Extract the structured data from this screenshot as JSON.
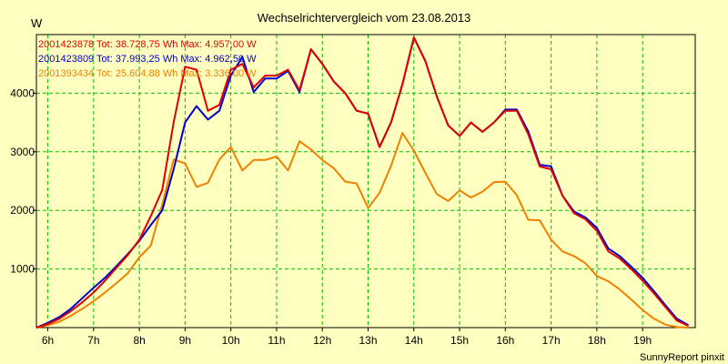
{
  "chart_data": {
    "type": "line",
    "title": "Wechselrichtervergleich vom 23.08.2013",
    "ylabel": "W",
    "xlabel": "",
    "ylim": [
      0,
      5000
    ],
    "xlim": [
      5.75,
      20.15
    ],
    "yticks": [
      1000,
      2000,
      3000,
      4000
    ],
    "ytick_labels": [
      "1000",
      "2000",
      "3000",
      "4000"
    ],
    "xticks": [
      6,
      7,
      8,
      9,
      10,
      11,
      12,
      13,
      14,
      15,
      16,
      17,
      18,
      19
    ],
    "xtick_labels": [
      "6h",
      "7h",
      "8h",
      "9h",
      "10h",
      "11h",
      "12h",
      "13h",
      "14h",
      "15h",
      "16h",
      "17h",
      "18h",
      "19h"
    ],
    "grid": true,
    "legend_position": "top-left",
    "series": [
      {
        "name": "2001423878",
        "label": "2001423878 Tot: 38.728,75 Wh Max: 4.957,00 W",
        "color": "#e00000",
        "x": [
          5.75,
          6.0,
          6.25,
          6.5,
          6.75,
          7.0,
          7.25,
          7.5,
          7.75,
          8.0,
          8.25,
          8.5,
          8.75,
          9.0,
          9.25,
          9.5,
          9.75,
          10.0,
          10.25,
          10.5,
          10.75,
          11.0,
          11.25,
          11.5,
          11.75,
          12.0,
          12.25,
          12.5,
          12.75,
          13.0,
          13.25,
          13.5,
          13.75,
          14.0,
          14.25,
          14.5,
          14.75,
          15.0,
          15.25,
          15.5,
          15.75,
          16.0,
          16.25,
          16.5,
          16.75,
          17.0,
          17.25,
          17.5,
          17.75,
          18.0,
          18.25,
          18.5,
          18.75,
          19.0,
          19.25,
          19.5,
          19.75,
          20.0
        ],
        "values": [
          0,
          60,
          150,
          280,
          430,
          600,
          800,
          1020,
          1240,
          1500,
          1900,
          2350,
          3500,
          4450,
          4400,
          3700,
          3800,
          4400,
          4500,
          4100,
          4300,
          4300,
          4400,
          4050,
          4750,
          4500,
          4200,
          4000,
          3700,
          3650,
          3080,
          3500,
          4150,
          4950,
          4550,
          3950,
          3450,
          3270,
          3500,
          3340,
          3500,
          3700,
          3700,
          3300,
          2750,
          2700,
          2250,
          1950,
          1850,
          1650,
          1300,
          1180,
          1000,
          800,
          580,
          350,
          120,
          30
        ]
      },
      {
        "name": "2001423809",
        "label": "2001423809 Tot: 37.993,25 Wh Max: 4.962,50 W",
        "color": "#0000d0",
        "x": [
          5.75,
          6.0,
          6.25,
          6.5,
          6.75,
          7.0,
          7.25,
          7.5,
          7.75,
          8.0,
          8.25,
          8.5,
          8.75,
          9.0,
          9.25,
          9.5,
          9.75,
          10.0,
          10.25,
          10.5,
          10.75,
          11.0,
          11.25,
          11.5,
          11.75,
          12.0,
          12.25,
          12.5,
          12.75,
          13.0,
          13.25,
          13.5,
          13.75,
          14.0,
          14.25,
          14.5,
          14.75,
          15.0,
          15.25,
          15.5,
          15.75,
          16.0,
          16.25,
          16.5,
          16.75,
          17.0,
          17.25,
          17.5,
          17.75,
          18.0,
          18.25,
          18.5,
          18.75,
          19.0,
          19.25,
          19.5,
          19.75,
          20.0
        ],
        "values": [
          0,
          80,
          180,
          320,
          500,
          680,
          850,
          1050,
          1260,
          1480,
          1750,
          2000,
          2700,
          3500,
          3780,
          3550,
          3700,
          4300,
          4620,
          4020,
          4250,
          4250,
          4380,
          4020,
          4750,
          4500,
          4200,
          4000,
          3700,
          3650,
          3080,
          3500,
          4150,
          4950,
          4550,
          3950,
          3450,
          3270,
          3500,
          3340,
          3500,
          3720,
          3720,
          3350,
          2780,
          2750,
          2250,
          1980,
          1880,
          1700,
          1350,
          1220,
          1040,
          850,
          620,
          380,
          150,
          40
        ]
      },
      {
        "name": "2001393434",
        "label": "2001393434 Tot: 25.604,88 Wh Max: 3.336,00 W",
        "color": "#f08000",
        "x": [
          5.75,
          6.0,
          6.25,
          6.5,
          6.75,
          7.0,
          7.25,
          7.5,
          7.75,
          8.0,
          8.25,
          8.5,
          8.75,
          9.0,
          9.25,
          9.5,
          9.75,
          10.0,
          10.25,
          10.5,
          10.75,
          11.0,
          11.25,
          11.5,
          11.75,
          12.0,
          12.25,
          12.5,
          12.75,
          13.0,
          13.25,
          13.5,
          13.75,
          14.0,
          14.25,
          14.5,
          14.75,
          15.0,
          15.25,
          15.5,
          15.75,
          16.0,
          16.25,
          16.5,
          16.75,
          17.0,
          17.25,
          17.5,
          17.75,
          18.0,
          18.25,
          18.5,
          18.75,
          19.0,
          19.25,
          19.5,
          19.75,
          20.0
        ],
        "values": [
          0,
          40,
          100,
          200,
          320,
          450,
          600,
          760,
          930,
          1200,
          1400,
          2100,
          2870,
          2800,
          2400,
          2470,
          2870,
          3080,
          2680,
          2860,
          2860,
          2920,
          2680,
          3180,
          3040,
          2860,
          2720,
          2490,
          2460,
          2040,
          2300,
          2760,
          3320,
          3020,
          2640,
          2280,
          2160,
          2340,
          2220,
          2320,
          2480,
          2490,
          2260,
          1840,
          1830,
          1500,
          1300,
          1220,
          1100,
          880,
          790,
          650,
          480,
          300,
          150,
          50,
          10,
          0
        ]
      }
    ]
  },
  "footer": {
    "text": "SunnyReport pinxit"
  },
  "colors": {
    "background": "#ffffc0",
    "plot_background": "#ffffc0",
    "grid": "#00c000",
    "axis": "#000000"
  }
}
